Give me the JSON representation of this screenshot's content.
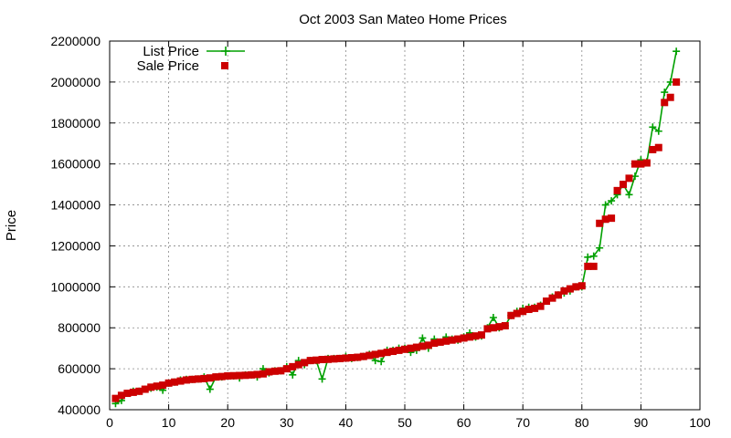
{
  "chart_data": {
    "type": "line",
    "title": "Oct 2003 San Mateo Home Prices",
    "xlabel": "",
    "ylabel": "Price",
    "xlim": [
      0,
      100
    ],
    "ylim": [
      400000,
      2200000
    ],
    "xticks": [
      0,
      10,
      20,
      30,
      40,
      50,
      60,
      70,
      80,
      90,
      100
    ],
    "yticks": [
      400000,
      600000,
      800000,
      1000000,
      1200000,
      1400000,
      1600000,
      1800000,
      2000000,
      2200000
    ],
    "grid": true,
    "legend_position": "top-left",
    "series": [
      {
        "name": "List Price",
        "style": "line+cross",
        "color": "#00a000",
        "x": [
          1,
          2,
          3,
          4,
          5,
          6,
          7,
          8,
          9,
          10,
          11,
          12,
          13,
          14,
          15,
          16,
          17,
          18,
          19,
          20,
          21,
          22,
          23,
          24,
          25,
          26,
          27,
          28,
          29,
          30,
          31,
          32,
          33,
          34,
          35,
          36,
          37,
          38,
          39,
          40,
          41,
          42,
          43,
          44,
          45,
          46,
          47,
          48,
          49,
          50,
          51,
          52,
          53,
          54,
          55,
          56,
          57,
          58,
          59,
          60,
          61,
          62,
          63,
          64,
          65,
          66,
          67,
          68,
          69,
          70,
          71,
          72,
          73,
          74,
          75,
          76,
          77,
          78,
          79,
          80,
          81,
          82,
          83,
          84,
          85,
          86,
          87,
          88,
          89,
          90,
          91,
          92,
          93,
          94,
          95,
          96
        ],
        "y": [
          430000,
          445000,
          480000,
          490000,
          490000,
          500000,
          505000,
          510000,
          495000,
          530000,
          535000,
          545000,
          548000,
          548000,
          550000,
          560000,
          500000,
          560000,
          560000,
          565000,
          565000,
          555000,
          570000,
          570000,
          560000,
          600000,
          580000,
          590000,
          590000,
          610000,
          570000,
          640000,
          620000,
          640000,
          640000,
          550000,
          650000,
          650000,
          650000,
          660000,
          650000,
          655000,
          660000,
          670000,
          640000,
          635000,
          690000,
          690000,
          700000,
          700000,
          680000,
          690000,
          750000,
          700000,
          745000,
          730000,
          755000,
          745000,
          740000,
          755000,
          775000,
          755000,
          760000,
          800000,
          850000,
          800000,
          810000,
          860000,
          880000,
          895000,
          900000,
          900000,
          910000,
          930000,
          950000,
          960000,
          970000,
          980000,
          1000000,
          1000000,
          1145000,
          1150000,
          1190000,
          1400000,
          1420000,
          1450000,
          1500000,
          1450000,
          1540000,
          1620000,
          1610000,
          1780000,
          1760000,
          1950000,
          2000000,
          2150000
        ]
      },
      {
        "name": "Sale Price",
        "style": "filled-square",
        "color": "#cc0000",
        "x": [
          1,
          2,
          3,
          4,
          5,
          6,
          7,
          8,
          9,
          10,
          11,
          12,
          13,
          14,
          15,
          16,
          17,
          18,
          19,
          20,
          21,
          22,
          23,
          24,
          25,
          26,
          27,
          28,
          29,
          30,
          31,
          32,
          33,
          34,
          35,
          36,
          37,
          38,
          39,
          40,
          41,
          42,
          43,
          44,
          45,
          46,
          47,
          48,
          49,
          50,
          51,
          52,
          53,
          54,
          55,
          56,
          57,
          58,
          59,
          60,
          61,
          62,
          63,
          64,
          65,
          66,
          67,
          68,
          69,
          70,
          71,
          72,
          73,
          74,
          75,
          76,
          77,
          78,
          79,
          80,
          81,
          82,
          83,
          84,
          85,
          86,
          87,
          88,
          89,
          90,
          91,
          92,
          93,
          94,
          95,
          96
        ],
        "y": [
          455000,
          470000,
          480000,
          485000,
          490000,
          500000,
          510000,
          515000,
          520000,
          530000,
          535000,
          540000,
          545000,
          548000,
          550000,
          552000,
          555000,
          560000,
          562000,
          565000,
          566000,
          567000,
          568000,
          570000,
          572000,
          575000,
          585000,
          588000,
          590000,
          600000,
          610000,
          620000,
          630000,
          640000,
          642000,
          645000,
          646000,
          648000,
          650000,
          652000,
          654000,
          656000,
          660000,
          665000,
          670000,
          675000,
          680000,
          685000,
          690000,
          695000,
          700000,
          705000,
          710000,
          715000,
          725000,
          730000,
          735000,
          740000,
          745000,
          750000,
          755000,
          760000,
          765000,
          795000,
          800000,
          805000,
          810000,
          860000,
          870000,
          880000,
          890000,
          895000,
          905000,
          930000,
          945000,
          960000,
          980000,
          990000,
          1000000,
          1005000,
          1100000,
          1100000,
          1310000,
          1330000,
          1335000,
          1470000,
          1500000,
          1530000,
          1600000,
          1600000,
          1605000,
          1670000,
          1680000,
          1900000,
          1925000,
          2000000
        ]
      }
    ]
  }
}
